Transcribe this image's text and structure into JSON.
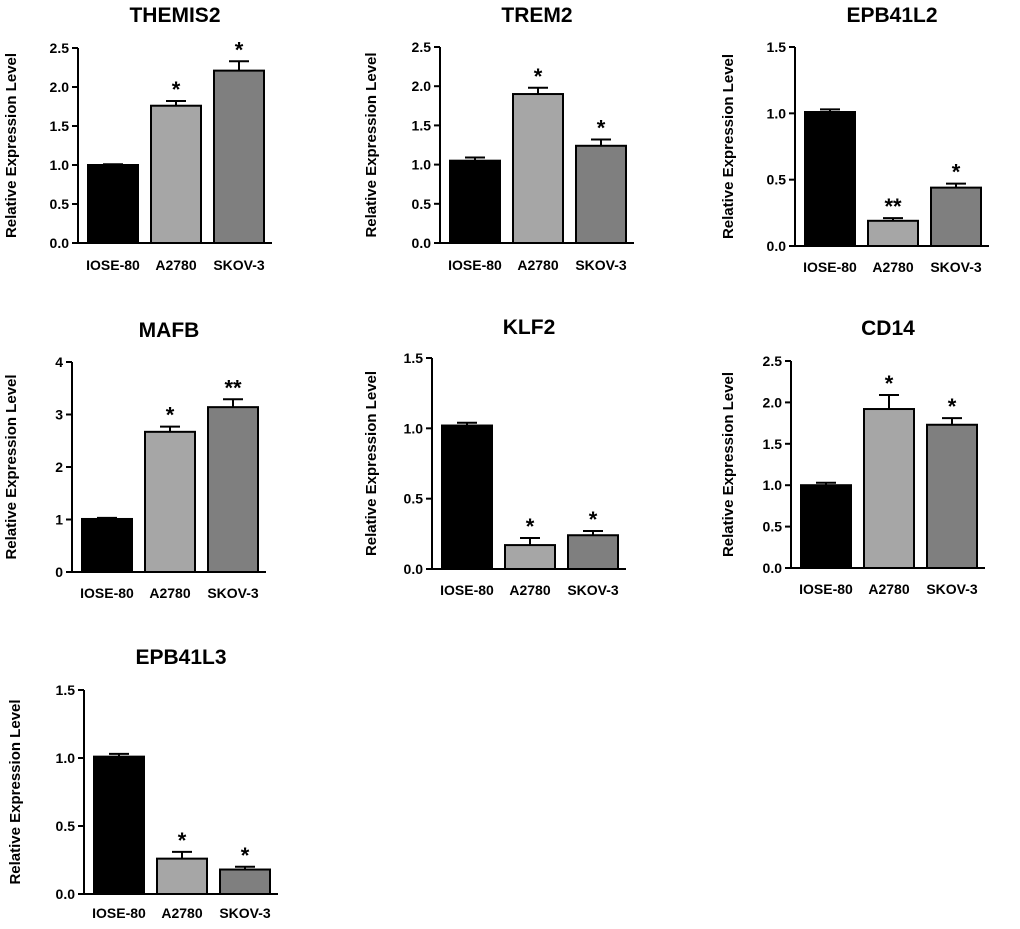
{
  "figure": {
    "background": "#ffffff"
  },
  "style": {
    "bar_colors": [
      "#000000",
      "#a6a6a6",
      "#7f7f7f"
    ],
    "axis_color": "#000000"
  },
  "chart_data": [
    {
      "type": "bar",
      "title": "THEMIS2",
      "xlabel": "",
      "ylabel": "Relative Expression Level",
      "categories": [
        "IOSE-80",
        "A2780",
        "SKOV-3"
      ],
      "values": [
        1.0,
        1.76,
        2.21
      ],
      "errors": [
        0.01,
        0.06,
        0.12
      ],
      "significance": [
        "",
        "*",
        "*"
      ],
      "ylim": [
        0,
        2.5
      ],
      "yticks": [
        0.0,
        0.5,
        1.0,
        1.5,
        2.0,
        2.5
      ],
      "ytick_labels": [
        "0.0",
        "0.5",
        "1.0",
        "1.5",
        "2.0",
        "2.5"
      ]
    },
    {
      "type": "bar",
      "title": "TREM2",
      "xlabel": "",
      "ylabel": "Relative Expression Level",
      "categories": [
        "IOSE-80",
        "A2780",
        "SKOV-3"
      ],
      "values": [
        1.05,
        1.9,
        1.24
      ],
      "errors": [
        0.04,
        0.08,
        0.08
      ],
      "significance": [
        "",
        "*",
        "*"
      ],
      "ylim": [
        0,
        2.5
      ],
      "yticks": [
        0.0,
        0.5,
        1.0,
        1.5,
        2.0,
        2.5
      ],
      "ytick_labels": [
        "0.0",
        "0.5",
        "1.0",
        "1.5",
        "2.0",
        "2.5"
      ]
    },
    {
      "type": "bar",
      "title": "EPB41L2",
      "xlabel": "",
      "ylabel": "Relative Expression Level",
      "categories": [
        "IOSE-80",
        "A2780",
        "SKOV-3"
      ],
      "values": [
        1.01,
        0.19,
        0.44
      ],
      "errors": [
        0.02,
        0.02,
        0.03
      ],
      "significance": [
        "",
        "**",
        "*"
      ],
      "ylim": [
        0,
        1.5
      ],
      "yticks": [
        0.0,
        0.5,
        1.0,
        1.5
      ],
      "ytick_labels": [
        "0.0",
        "0.5",
        "1.0",
        "1.5"
      ]
    },
    {
      "type": "bar",
      "title": "MAFB",
      "xlabel": "",
      "ylabel": "Relative Expression Level",
      "categories": [
        "IOSE-80",
        "A2780",
        "SKOV-3"
      ],
      "values": [
        1.01,
        2.67,
        3.14
      ],
      "errors": [
        0.02,
        0.1,
        0.15
      ],
      "significance": [
        "",
        "*",
        "**"
      ],
      "ylim": [
        0,
        4
      ],
      "yticks": [
        0,
        1,
        2,
        3,
        4
      ],
      "ytick_labels": [
        "0",
        "1",
        "2",
        "3",
        "4"
      ]
    },
    {
      "type": "bar",
      "title": "KLF2",
      "xlabel": "",
      "ylabel": "Relative Expression Level",
      "categories": [
        "IOSE-80",
        "A2780",
        "SKOV-3"
      ],
      "values": [
        1.02,
        0.17,
        0.24
      ],
      "errors": [
        0.02,
        0.05,
        0.03
      ],
      "significance": [
        "",
        "*",
        "*"
      ],
      "ylim": [
        0,
        1.5
      ],
      "yticks": [
        0.0,
        0.5,
        1.0,
        1.5
      ],
      "ytick_labels": [
        "0.0",
        "0.5",
        "1.0",
        "1.5"
      ]
    },
    {
      "type": "bar",
      "title": "CD14",
      "xlabel": "",
      "ylabel": "Relative Expression Level",
      "categories": [
        "IOSE-80",
        "A2780",
        "SKOV-3"
      ],
      "values": [
        1.0,
        1.92,
        1.73
      ],
      "errors": [
        0.03,
        0.17,
        0.08
      ],
      "significance": [
        "",
        "*",
        "*"
      ],
      "ylim": [
        0,
        2.5
      ],
      "yticks": [
        0.0,
        0.5,
        1.0,
        1.5,
        2.0,
        2.5
      ],
      "ytick_labels": [
        "0.0",
        "0.5",
        "1.0",
        "1.5",
        "2.0",
        "2.5"
      ]
    },
    {
      "type": "bar",
      "title": "EPB41L3",
      "xlabel": "",
      "ylabel": "Relative Expression Level",
      "categories": [
        "IOSE-80",
        "A2780",
        "SKOV-3"
      ],
      "values": [
        1.01,
        0.26,
        0.18
      ],
      "errors": [
        0.02,
        0.05,
        0.02
      ],
      "significance": [
        "",
        "*",
        "*"
      ],
      "ylim": [
        0,
        1.5
      ],
      "yticks": [
        0.0,
        0.5,
        1.0,
        1.5
      ],
      "ytick_labels": [
        "0.0",
        "0.5",
        "1.0",
        "1.5"
      ]
    }
  ]
}
